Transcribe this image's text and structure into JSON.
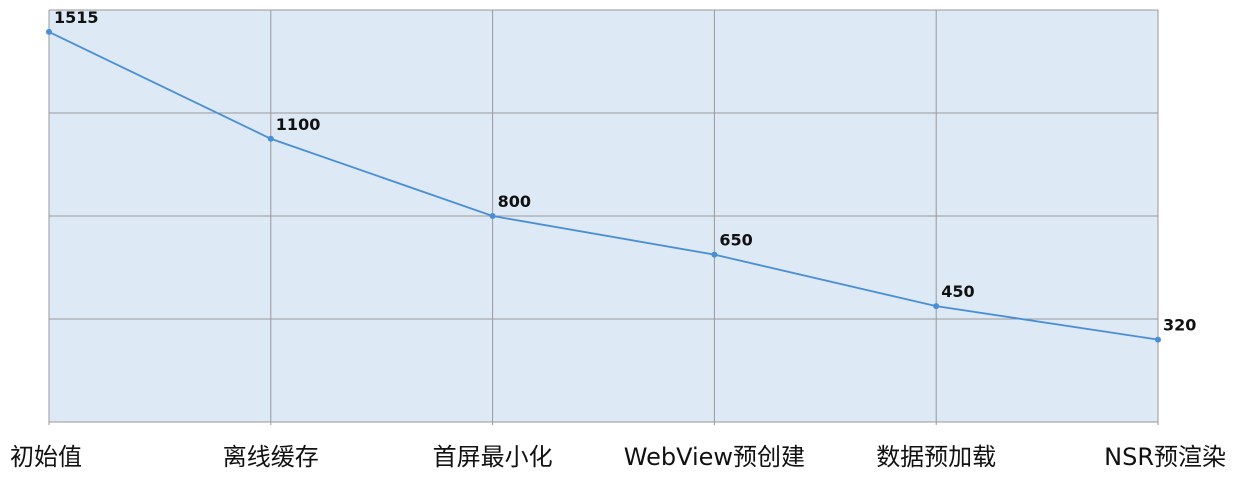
{
  "chart_data": {
    "type": "line",
    "title": "",
    "xlabel": "",
    "ylabel": "",
    "categories": [
      "初始值",
      "离线缓存",
      "首屏最小化",
      "WebView预创建",
      "数据预加载",
      "NSR预渲染"
    ],
    "series": [
      {
        "values": [
          1515,
          1100,
          800,
          650,
          450,
          320
        ]
      }
    ],
    "data_labels": [
      "1515",
      "1100",
      "800",
      "650",
      "450",
      "320"
    ],
    "ylim": [
      0,
      1600
    ],
    "grid": true,
    "legend": "none",
    "colors": {
      "plot_background": "#dde9f4",
      "line": "#4a8fd6",
      "grid": "#999999"
    }
  }
}
